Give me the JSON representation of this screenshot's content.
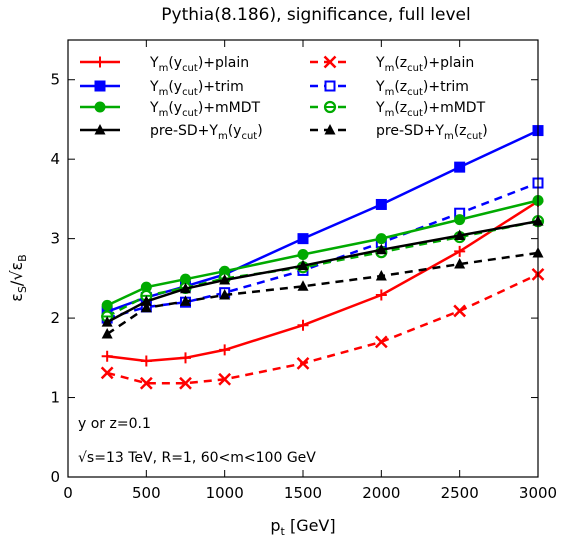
{
  "chart_data": {
    "type": "line",
    "title": "Pythia(8.186), significance, full level",
    "xlabel_base": "p",
    "xlabel_sub": "t",
    "xlabel_unit": " [GeV]",
    "ylabel_base": "ε",
    "ylabel_s_sub": "S",
    "ylabel_sep": "/√ε",
    "ylabel_b_sub": "B",
    "xlim": [
      0,
      3000
    ],
    "ylim": [
      0,
      5.5
    ],
    "xticks": [
      0,
      500,
      1000,
      1500,
      2000,
      2500,
      3000
    ],
    "yticks": [
      0,
      1,
      2,
      3,
      4,
      5
    ],
    "x": [
      250,
      500,
      750,
      1000,
      1500,
      2000,
      2500,
      3000
    ],
    "annotations": [
      "y or z=0.1",
      "√s=13 TeV, R=1, 60<m<100 GeV"
    ],
    "series": [
      {
        "name": "Y_m(y_cut)+plain",
        "name_base": "Y",
        "name_sub1": "m",
        "name_mid": "(y",
        "name_sub2": "cut",
        "name_tail": ")+plain",
        "color": "#ff0000",
        "dash": "solid",
        "marker": "plus",
        "values": [
          1.52,
          1.46,
          1.5,
          1.6,
          1.91,
          2.29,
          2.84,
          3.47
        ]
      },
      {
        "name": "Y_m(z_cut)+plain",
        "name_base": "Y",
        "name_sub1": "m",
        "name_mid": "(z",
        "name_sub2": "cut",
        "name_tail": ")+plain",
        "color": "#ff0000",
        "dash": "dashed",
        "marker": "cross",
        "values": [
          1.31,
          1.18,
          1.18,
          1.23,
          1.43,
          1.7,
          2.09,
          2.55
        ]
      },
      {
        "name": "Y_m(y_cut)+trim",
        "name_base": "Y",
        "name_sub1": "m",
        "name_mid": "(y",
        "name_sub2": "cut",
        "name_tail": ")+trim",
        "color": "#0000ff",
        "dash": "solid",
        "marker": "square-filled",
        "values": [
          2.08,
          2.26,
          2.4,
          2.55,
          3.0,
          3.43,
          3.9,
          4.36
        ]
      },
      {
        "name": "Y_m(z_cut)+trim",
        "name_base": "Y",
        "name_sub1": "m",
        "name_mid": "(z",
        "name_sub2": "cut",
        "name_tail": ")+trim",
        "color": "#0000ff",
        "dash": "dashed",
        "marker": "square-open",
        "values": [
          2.0,
          2.14,
          2.2,
          2.32,
          2.6,
          2.95,
          3.32,
          3.7
        ]
      },
      {
        "name": "Y_m(y_cut)+mMDT",
        "name_base": "Y",
        "name_sub1": "m",
        "name_mid": "(y",
        "name_sub2": "cut",
        "name_tail": ")+mMDT",
        "color": "#00aa00",
        "dash": "solid",
        "marker": "circle-filled",
        "values": [
          2.16,
          2.39,
          2.49,
          2.59,
          2.8,
          3.0,
          3.24,
          3.48
        ]
      },
      {
        "name": "Y_m(z_cut)+mMDT",
        "name_base": "Y",
        "name_sub1": "m",
        "name_mid": "(z",
        "name_sub2": "cut",
        "name_tail": ")+mMDT",
        "color": "#00aa00",
        "dash": "dashed",
        "marker": "circle-dot",
        "values": [
          2.02,
          2.28,
          2.38,
          2.5,
          2.64,
          2.83,
          3.02,
          3.22
        ]
      },
      {
        "name": "pre-SD+Y_m(y_cut)",
        "name_base": "pre-SD+Y",
        "name_sub1": "m",
        "name_mid": "(y",
        "name_sub2": "cut",
        "name_tail": ")",
        "color": "#000000",
        "dash": "solid",
        "marker": "triangle",
        "values": [
          1.95,
          2.21,
          2.37,
          2.48,
          2.66,
          2.86,
          3.04,
          3.22
        ]
      },
      {
        "name": "pre-SD+Y_m(z_cut)",
        "name_base": "pre-SD+Y",
        "name_sub1": "m",
        "name_mid": "(z",
        "name_sub2": "cut",
        "name_tail": ")",
        "color": "#000000",
        "dash": "dashed",
        "marker": "triangle",
        "values": [
          1.8,
          2.13,
          2.21,
          2.29,
          2.4,
          2.53,
          2.68,
          2.82
        ]
      }
    ],
    "legend_placement": "top",
    "grid": false
  }
}
